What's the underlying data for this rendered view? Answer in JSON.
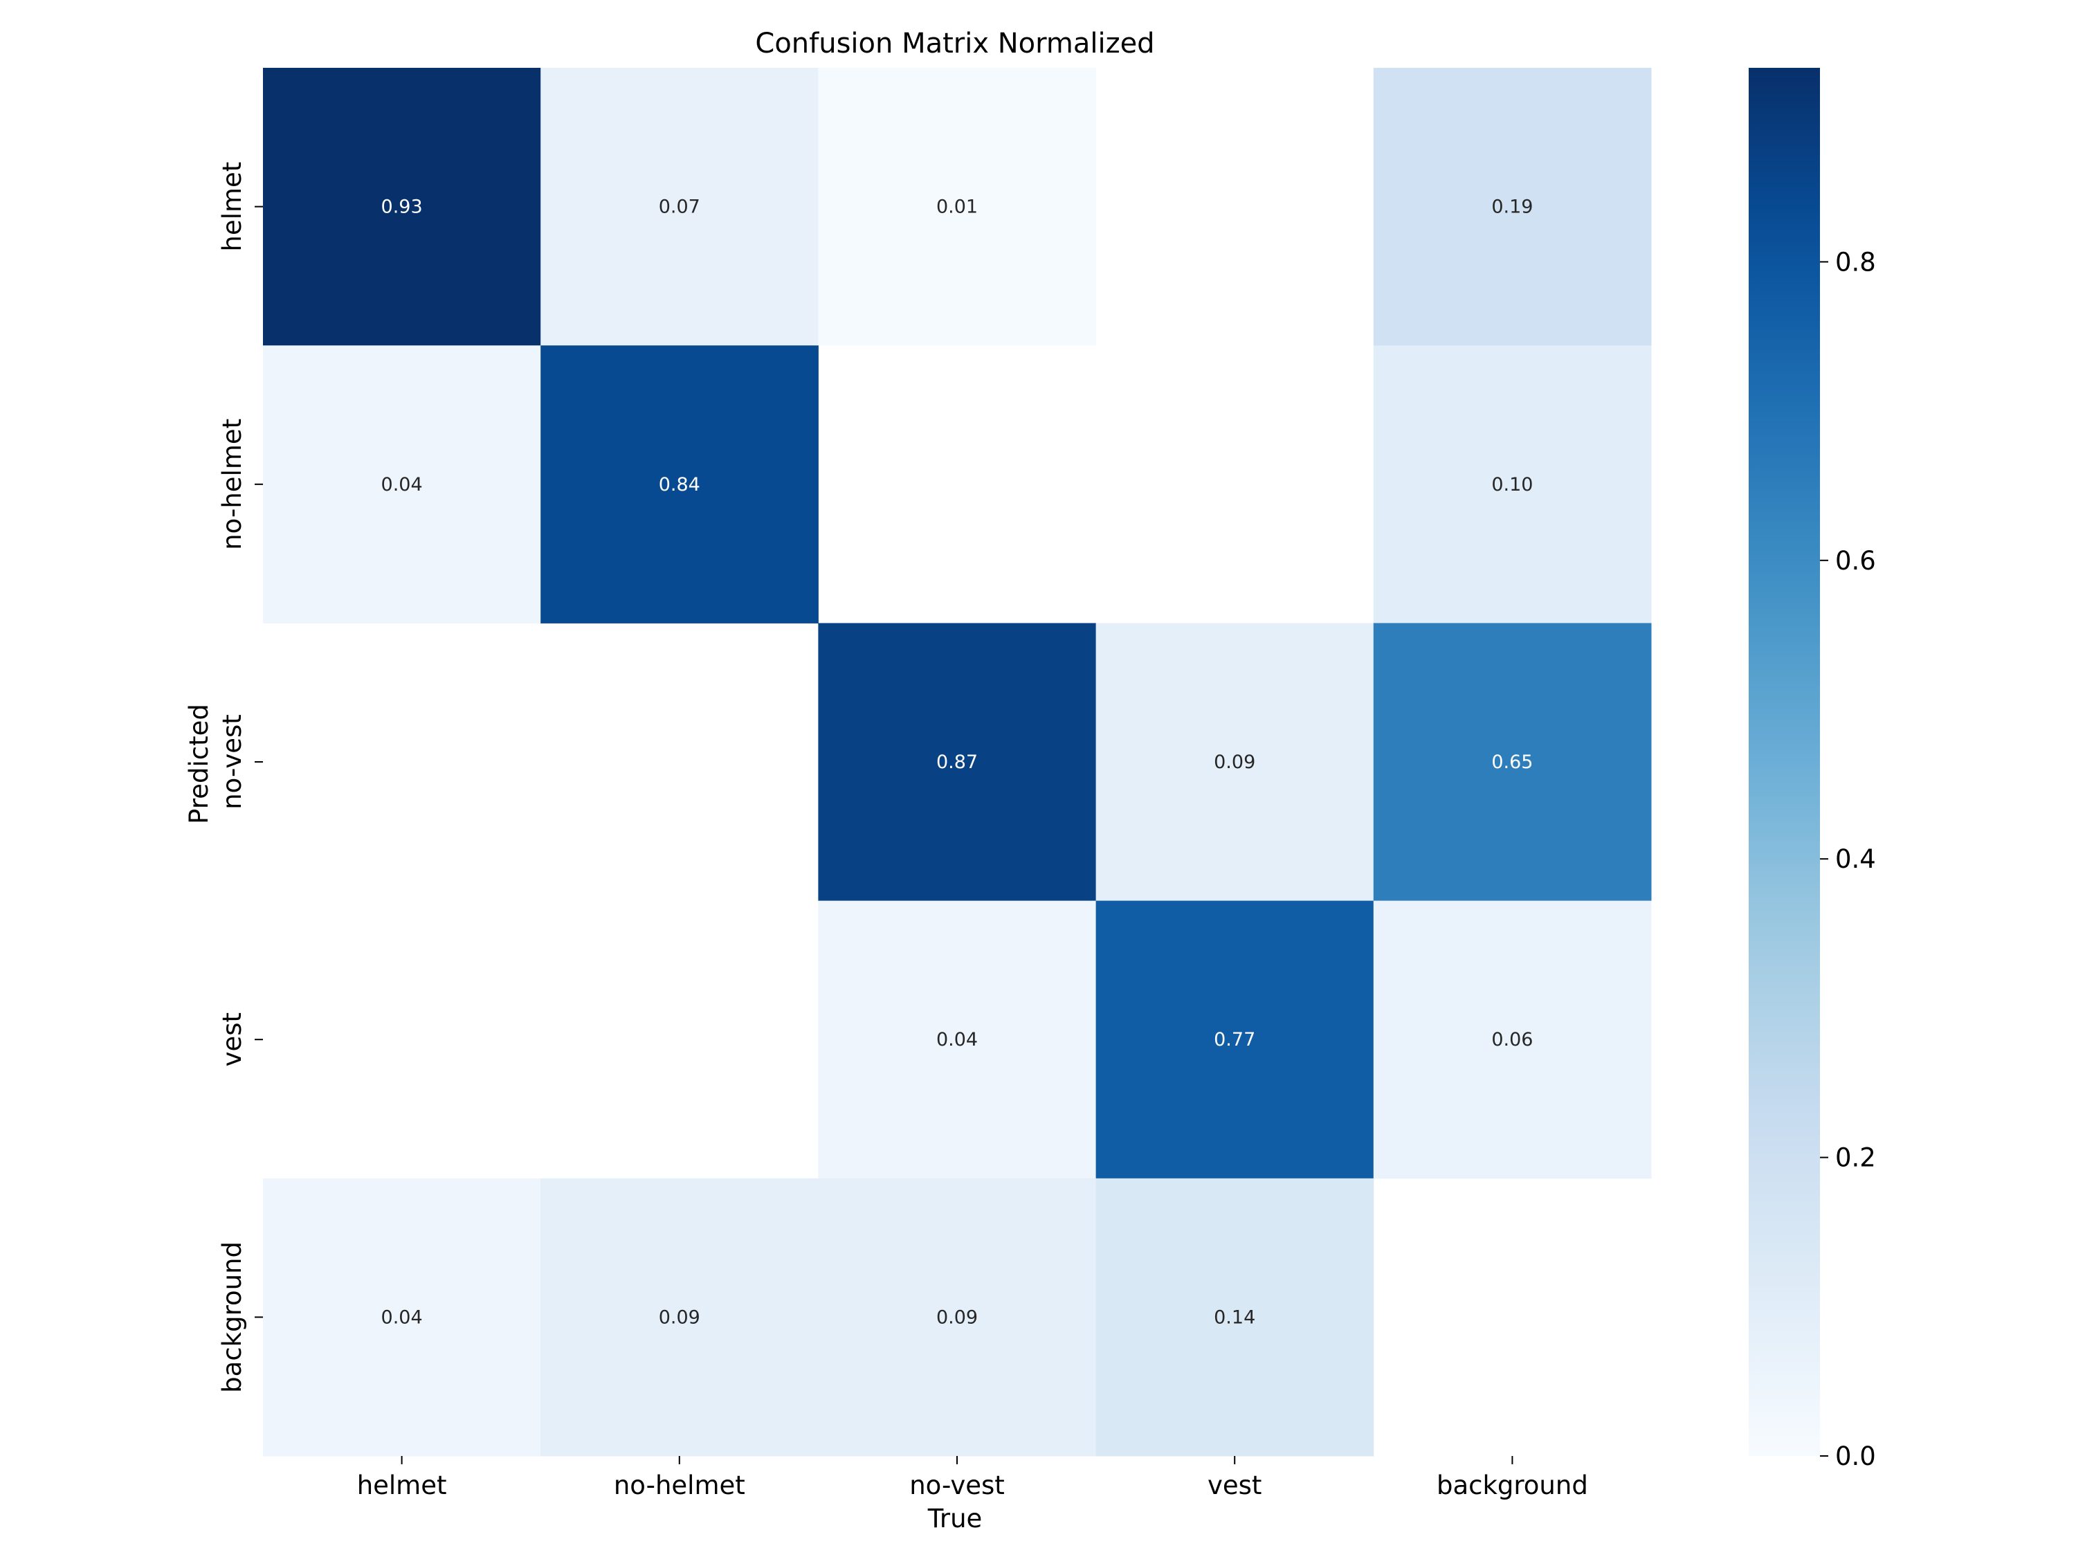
{
  "chart_data": {
    "type": "heatmap",
    "title": "Confusion Matrix Normalized",
    "xlabel": "True",
    "ylabel": "Predicted",
    "x_categories": [
      "helmet",
      "no-helmet",
      "no-vest",
      "vest",
      "background"
    ],
    "y_categories": [
      "helmet",
      "no-helmet",
      "no-vest",
      "vest",
      "background"
    ],
    "values": [
      [
        0.93,
        0.07,
        0.01,
        null,
        0.19
      ],
      [
        0.04,
        0.84,
        null,
        null,
        0.1
      ],
      [
        null,
        null,
        0.87,
        0.09,
        0.65
      ],
      [
        null,
        null,
        0.04,
        0.77,
        0.06
      ],
      [
        0.04,
        0.09,
        0.09,
        0.14,
        null
      ]
    ],
    "colormap": "Blues",
    "colorbar": {
      "min": 0.0,
      "max": 0.93,
      "ticks": [
        0.0,
        0.2,
        0.4,
        0.6,
        0.8
      ],
      "tick_labels": [
        "0.0",
        "0.2",
        "0.4",
        "0.6",
        "0.8"
      ]
    }
  }
}
